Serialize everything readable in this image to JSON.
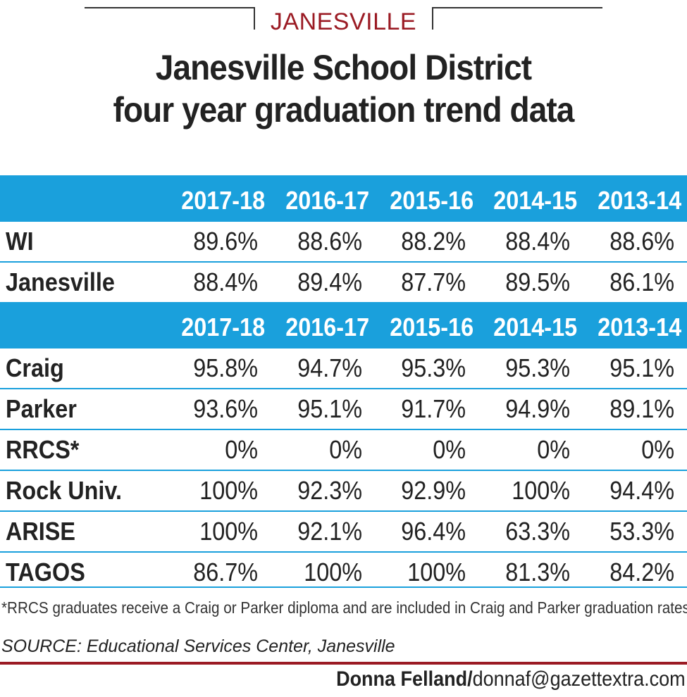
{
  "kicker": "JANESVILLE",
  "title_line1": "Janesville School District",
  "title_line2": "four year graduation trend data",
  "chart_data": {
    "type": "table",
    "columns": [
      "2017-18",
      "2016-17",
      "2015-16",
      "2014-15",
      "2013-14"
    ],
    "sections": [
      {
        "header": [
          "2017-18",
          "2016-17",
          "2015-16",
          "2014-15",
          "2013-14"
        ],
        "rows": [
          {
            "label": "WI",
            "values": [
              "89.6%",
              "88.6%",
              "88.2%",
              "88.4%",
              "88.6%"
            ]
          },
          {
            "label": "Janesville",
            "values": [
              "88.4%",
              "89.4%",
              "87.7%",
              "89.5%",
              "86.1%"
            ]
          }
        ]
      },
      {
        "header": [
          "2017-18",
          "2016-17",
          "2015-16",
          "2014-15",
          "2013-14"
        ],
        "rows": [
          {
            "label": "Craig",
            "values": [
              "95.8%",
              "94.7%",
              "95.3%",
              "95.3%",
              "95.1%"
            ]
          },
          {
            "label": "Parker",
            "values": [
              "93.6%",
              "95.1%",
              "91.7%",
              "94.9%",
              "89.1%"
            ]
          },
          {
            "label": "RRCS*",
            "values": [
              "0%",
              "0%",
              "0%",
              "0%",
              "0%"
            ]
          },
          {
            "label": "Rock Univ.",
            "values": [
              "100%",
              "92.3%",
              "92.9%",
              "100%",
              "94.4%"
            ]
          },
          {
            "label": "ARISE",
            "values": [
              "100%",
              "92.1%",
              "96.4%",
              "63.3%",
              "53.3%"
            ]
          },
          {
            "label": "TAGOS",
            "values": [
              "86.7%",
              "100%",
              "100%",
              "81.3%",
              "84.2%"
            ]
          }
        ]
      }
    ],
    "header_color": "#1aa0dc"
  },
  "footnote": "*RRCS graduates receive a Craig or Parker diploma and are included in Craig and Parker graduation rates.",
  "source": "SOURCE: Educational Services Center, Janesville",
  "credit_name": "Donna Felland/",
  "credit_email": "donnaf@gazettextra.com",
  "colors": {
    "accent_blue": "#1aa0dc",
    "accent_red": "#9b1b24"
  }
}
